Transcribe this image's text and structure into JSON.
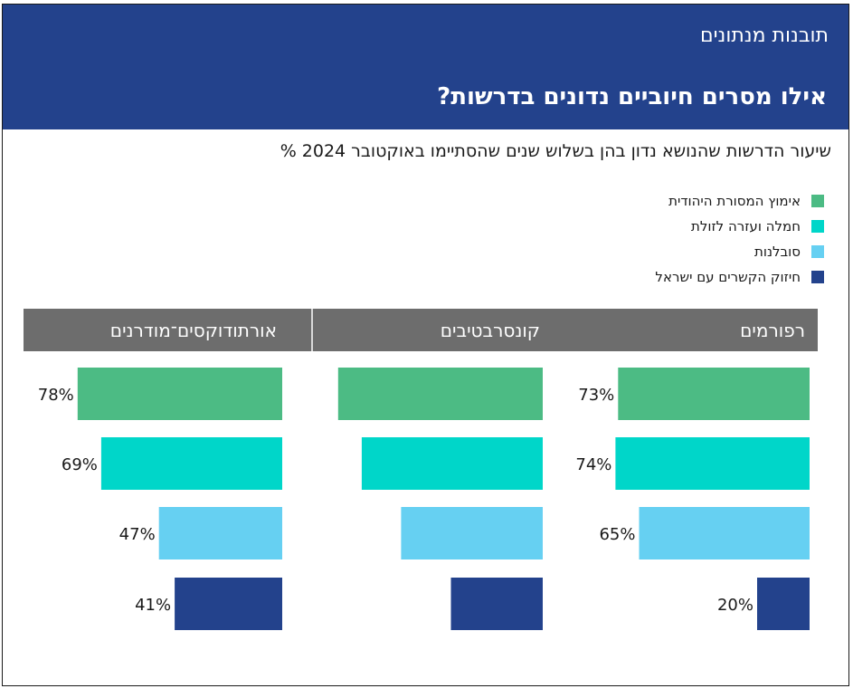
{
  "header": {
    "kicker": "תובנות מנתונים",
    "title": "אילו מסרים חיוביים נדונים בדרשות?"
  },
  "subtitle": "שיעור הדרשות שהנושא נדון בהן בשלוש שנים שהסתיימו באוקטובר 2024 %",
  "colors": {
    "header_bg": "#23428c",
    "panel_header_bg": "#6d6d6d",
    "series": [
      "#4cbb84",
      "#00d6c9",
      "#66d0f2",
      "#23428c"
    ]
  },
  "chart_data": {
    "type": "bar",
    "orientation": "horizontal",
    "series_names": [
      "אימוץ המסורת היהודית",
      "חמלה ועזרה לזולת",
      "סובלנות",
      "חיזוק הקשרים עם ישראל"
    ],
    "panels": [
      {
        "name": "רפורמים",
        "values": [
          73,
          74,
          65,
          20
        ],
        "labels": [
          "73%",
          "74%",
          "65%",
          "20%"
        ]
      },
      {
        "name": "קונסרבטיבים",
        "values": [
          78,
          69,
          54,
          35
        ],
        "labels": [
          "",
          "",
          "",
          ""
        ]
      },
      {
        "name": "אורתודוקסים־מודרנים",
        "values": [
          78,
          69,
          47,
          41
        ],
        "labels": [
          "78%",
          "69%",
          "47%",
          "41%"
        ]
      }
    ],
    "xlim": [
      0,
      100
    ]
  }
}
